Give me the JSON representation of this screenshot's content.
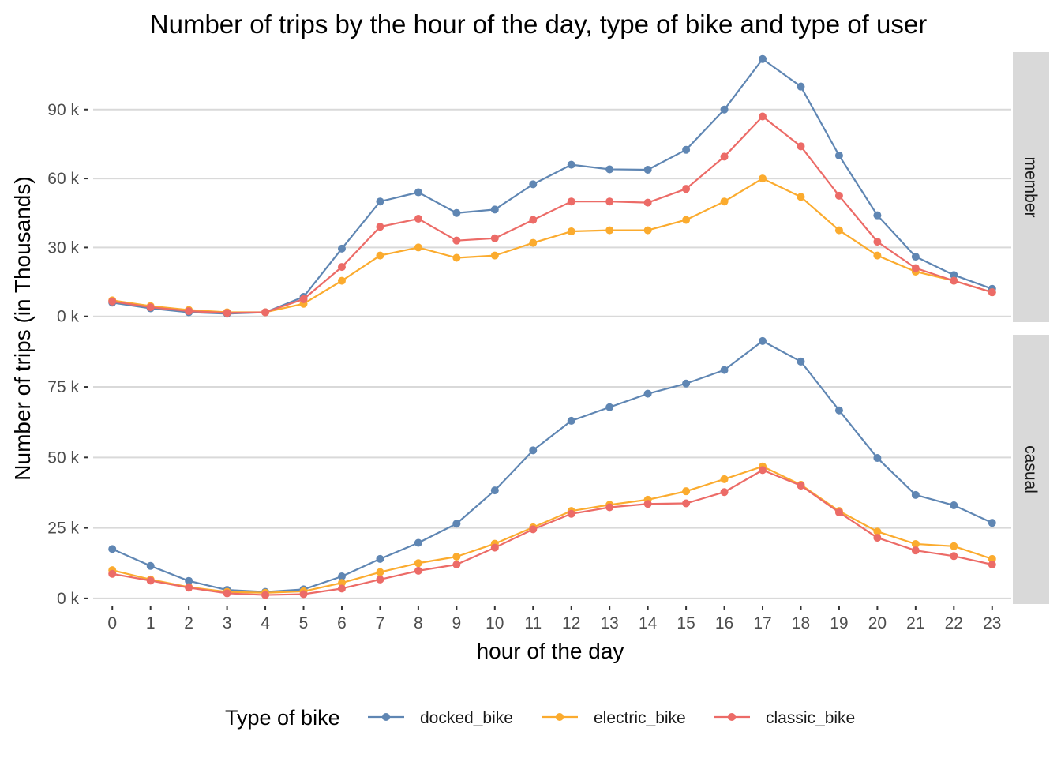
{
  "chart_data": {
    "type": "line",
    "title": "Number of trips by the hour of the day, type of bike and type of user",
    "xlabel": "hour of the day",
    "ylabel": "Number of trips (in Thousands)",
    "x": [
      0,
      1,
      2,
      3,
      4,
      5,
      6,
      7,
      8,
      9,
      10,
      11,
      12,
      13,
      14,
      15,
      16,
      17,
      18,
      19,
      20,
      21,
      22,
      23
    ],
    "x_tick_labels": [
      "0",
      "1",
      "2",
      "3",
      "4",
      "5",
      "6",
      "7",
      "8",
      "9",
      "10",
      "11",
      "12",
      "13",
      "14",
      "15",
      "16",
      "17",
      "18",
      "19",
      "20",
      "21",
      "22",
      "23"
    ],
    "legend": {
      "title": "Type of bike",
      "position": "bottom"
    },
    "grid": true,
    "series_colors": {
      "docked_bike": "#5f86b3",
      "electric_bike": "#fbab2e",
      "classic_bike": "#ec6b67"
    },
    "panels": [
      {
        "strip_label": "member",
        "ylim": [
          -2500,
          115000
        ],
        "y_ticks": [
          0,
          30000,
          60000,
          90000
        ],
        "y_tick_labels": [
          "0 k",
          "30 k",
          "60 k",
          "90 k"
        ],
        "series": [
          {
            "name": "docked_bike",
            "values": [
              6000,
              3500,
              1800,
              1200,
              1800,
              8500,
              29500,
              50000,
              54000,
              45000,
              46500,
              57500,
              66000,
              64000,
              63800,
              72500,
              90000,
              112000,
              100000,
              70000,
              44000,
              26000,
              18000,
              12000
            ]
          },
          {
            "name": "electric_bike",
            "values": [
              7000,
              4500,
              2800,
              1800,
              1800,
              5500,
              15500,
              26500,
              30000,
              25500,
              26500,
              32000,
              37000,
              37500,
              37500,
              42000,
              50000,
              60000,
              52000,
              37500,
              26500,
              19500,
              15500,
              10500
            ]
          },
          {
            "name": "classic_bike",
            "values": [
              6500,
              4000,
              2300,
              1500,
              1800,
              7500,
              21500,
              39000,
              42500,
              33000,
              34000,
              42000,
              50000,
              50000,
              49500,
              55500,
              69500,
              87000,
              74000,
              52500,
              32500,
              21000,
              15500,
              10500
            ]
          }
        ]
      },
      {
        "strip_label": "casual",
        "ylim": [
          -2000,
          93500
        ],
        "y_ticks": [
          0,
          25000,
          50000,
          75000
        ],
        "y_tick_labels": [
          "0 k",
          "25 k",
          "50 k",
          "75 k"
        ],
        "series": [
          {
            "name": "docked_bike",
            "values": [
              17500,
              11500,
              6200,
              3000,
              2300,
              3200,
              7800,
              14000,
              19700,
              26500,
              38300,
              52500,
              63000,
              67800,
              72600,
              76200,
              81000,
              91300,
              84000,
              66700,
              49800,
              36700,
              33000,
              26800
            ]
          },
          {
            "name": "electric_bike",
            "values": [
              10000,
              6700,
              4000,
              2300,
              2000,
              2500,
              5500,
              9300,
              12500,
              14800,
              19400,
              25200,
              31000,
              33200,
              35000,
              38000,
              42300,
              46800,
              40300,
              31000,
              23700,
              19300,
              18500,
              14000
            ]
          },
          {
            "name": "classic_bike",
            "values": [
              8700,
              6300,
              3800,
              1800,
              1200,
              1500,
              3500,
              6700,
              9800,
              12000,
              18000,
              24500,
              30000,
              32300,
              33500,
              33700,
              37700,
              45500,
              40000,
              30500,
              21500,
              17000,
              15000,
              12000
            ]
          }
        ]
      }
    ]
  }
}
